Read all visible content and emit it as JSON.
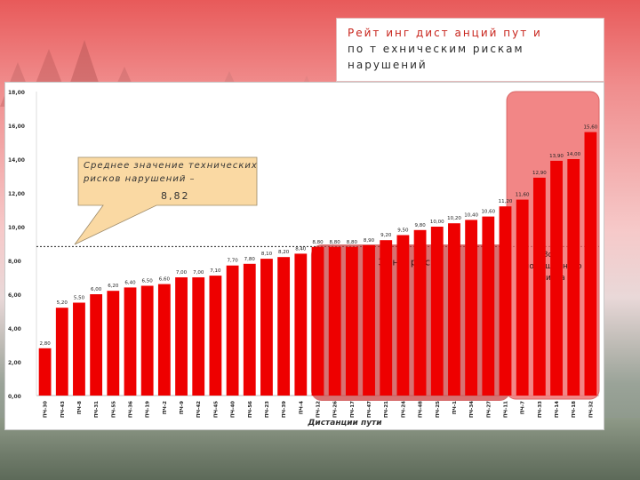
{
  "title": {
    "line1": "Рейт инг дист анций пут и",
    "line2": "по т ехническим рискам нарушений"
  },
  "callout": {
    "line1": "Среднее значение технических",
    "line2": "рисков нарушений –",
    "value": "8,82"
  },
  "zones": {
    "risk": "Зона риска",
    "high_risk": [
      "Зона",
      "повышенного",
      "риска"
    ]
  },
  "colors": {
    "bar": "#ee0000",
    "risk_zone": "#c73b3b",
    "high_zone": "#f06868",
    "title_accent": "#c8241c"
  },
  "chart_data": {
    "type": "bar",
    "xlabel": "Дистанции пути",
    "ylabel": "",
    "ylim": [
      0,
      18
    ],
    "yticks": [
      "0,00",
      "2,00",
      "4,00",
      "6,00",
      "8,00",
      "10,00",
      "12,00",
      "14,00",
      "16,00",
      "18,00"
    ],
    "mean": 8.82,
    "categories": [
      "ПЧ-30",
      "ПЧ-43",
      "ПЧ-8",
      "ПЧ-31",
      "ПЧ-55",
      "ПЧ-36",
      "ПЧ-19",
      "ПЧ-2",
      "ПЧ-9",
      "ПЧ-42",
      "ПЧ-45",
      "ПЧ-40",
      "ПЧ-56",
      "ПЧ-23",
      "ПЧ-39",
      "ПЧ-4",
      "ПЧ-12",
      "ПЧ-26",
      "ПЧ-17",
      "ПЧ-47",
      "ПЧ-21",
      "ПЧ-24",
      "ПЧ-48",
      "ПЧ-25",
      "ПЧ-1",
      "ПЧ-34",
      "ПЧ-27",
      "ПЧ-11",
      "ПЧ-7",
      "ПЧ-33",
      "ПЧ-14",
      "ПЧ-18",
      "ПЧ-32"
    ],
    "values": [
      2.8,
      5.2,
      5.5,
      6.0,
      6.2,
      6.4,
      6.5,
      6.6,
      7.0,
      7.0,
      7.1,
      7.7,
      7.8,
      8.1,
      8.2,
      8.4,
      8.8,
      8.8,
      8.8,
      8.9,
      9.2,
      9.5,
      9.8,
      10.0,
      10.2,
      10.4,
      10.6,
      11.2,
      11.6,
      12.9,
      13.9,
      14.0,
      15.6
    ],
    "value_labels": [
      "2,80",
      "5,20",
      "5,50",
      "6,00",
      "6,20",
      "6,40",
      "6,50",
      "6,60",
      "7,00",
      "7,00",
      "7,10",
      "7,70",
      "7,80",
      "8,10",
      "8,20",
      "8,40",
      "8,80",
      "8,80",
      "8,80",
      "8,90",
      "9,20",
      "9,50",
      "9,80",
      "10,00",
      "10,20",
      "10,40",
      "10,60",
      "11,20",
      "11,60",
      "12,90",
      "13,90",
      "14,00",
      "15,60"
    ],
    "risk_zone_range": [
      "ПЧ-12",
      "ПЧ-11"
    ],
    "high_risk_zone_range": [
      "ПЧ-7",
      "ПЧ-32"
    ]
  }
}
